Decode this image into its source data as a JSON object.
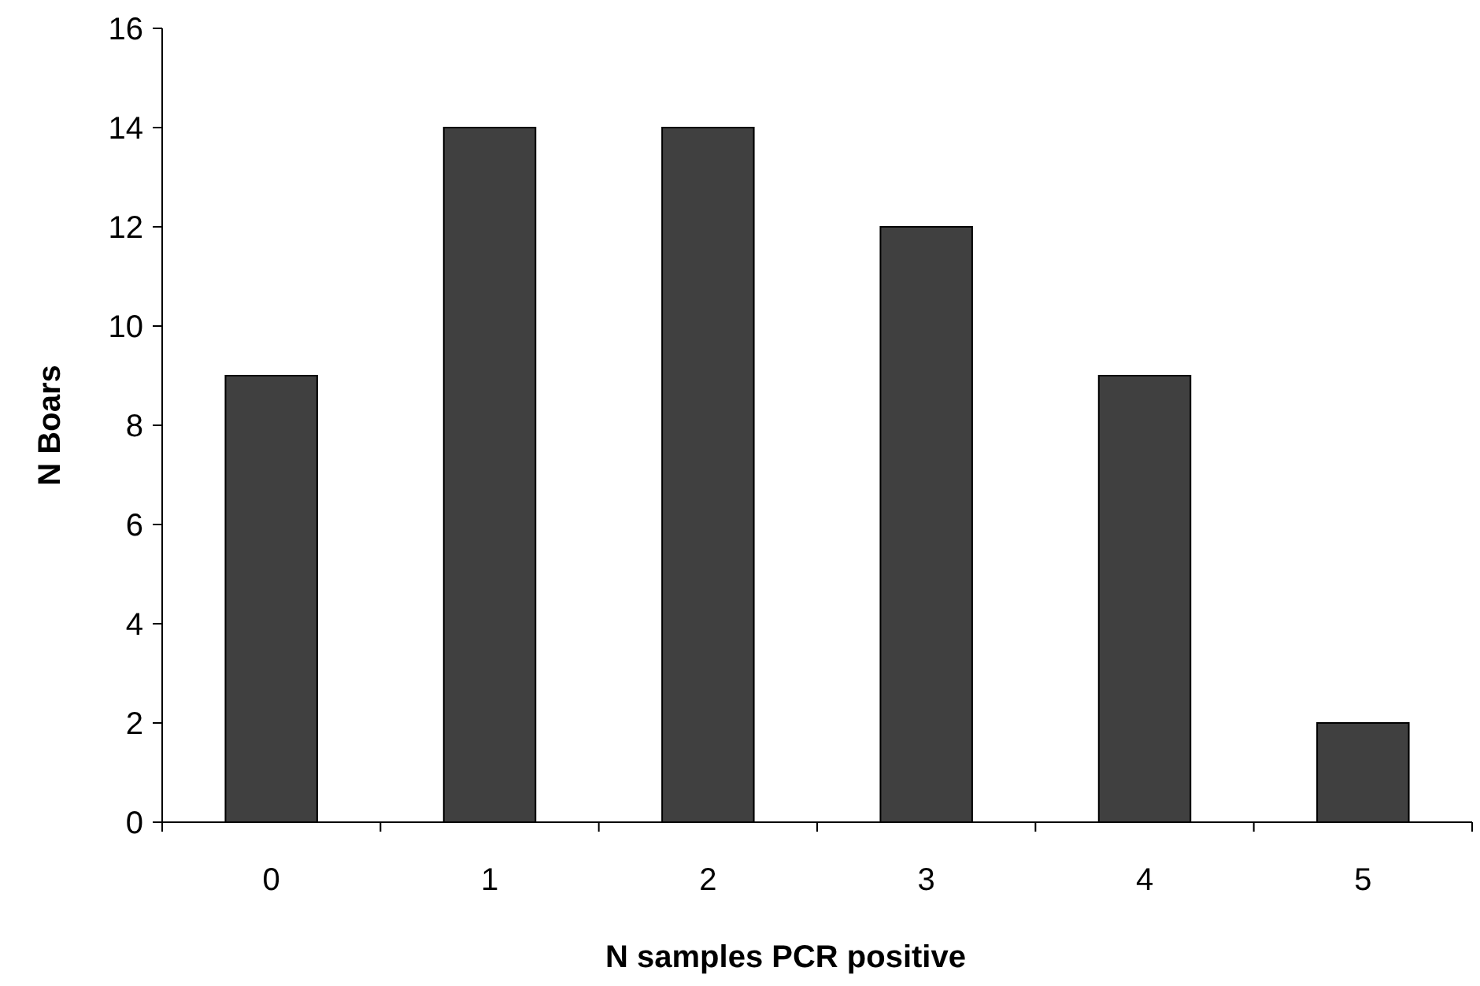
{
  "chart_data": {
    "type": "bar",
    "xlabel": "N samples PCR positive",
    "ylabel": "N Boars",
    "categories": [
      "0",
      "1",
      "2",
      "3",
      "4",
      "5"
    ],
    "values": [
      9,
      14,
      14,
      12,
      9,
      2
    ],
    "color": "#404040",
    "ylim": [
      0,
      16
    ],
    "yticks": [
      0,
      2,
      4,
      6,
      8,
      10,
      12,
      14,
      16
    ],
    "grid": false
  }
}
